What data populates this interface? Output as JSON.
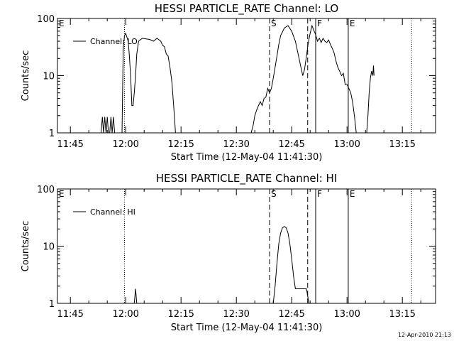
{
  "footer": {
    "timestamp": "12-Apr-2010 21:13"
  },
  "chart_data": [
    {
      "type": "line",
      "title": "HESSI PARTICLE_RATE Channel: LO",
      "xlabel": "Start Time (12-May-04 11:41:30)",
      "ylabel": "Counts/sec",
      "yscale": "log",
      "xlim": [
        "11:41:30",
        "13:24:00"
      ],
      "ylim": [
        1,
        100
      ],
      "x_ticks": [
        "11:45",
        "12:00",
        "12:15",
        "12:30",
        "12:45",
        "13:00",
        "13:15"
      ],
      "y_ticks": [
        "1",
        "10",
        "100"
      ],
      "legend": {
        "placement": "top-left",
        "entries": [
          "Channel: LO"
        ]
      },
      "series": [
        {
          "name": "Channel: LO",
          "segments": [
            [
              [
                "11:53:20",
                1
              ],
              [
                "11:53:40",
                1.9
              ],
              [
                "11:54:00",
                1
              ],
              [
                "11:54:20",
                1.9
              ],
              [
                "11:54:40",
                1
              ],
              [
                "11:55:00",
                1.9
              ],
              [
                "11:55:20",
                1
              ],
              [
                "11:55:40",
                1
              ],
              [
                "11:56:00",
                1.9
              ],
              [
                "11:56:20",
                1
              ],
              [
                "11:56:40",
                1.9
              ],
              [
                "11:57:00",
                1
              ]
            ],
            [
              [
                "11:59:00",
                1
              ],
              [
                "11:59:20",
                30
              ],
              [
                "11:59:40",
                50
              ],
              [
                "12:00:00",
                55
              ],
              [
                "12:00:20",
                47
              ],
              [
                "12:00:40",
                40
              ],
              [
                "12:01:00",
                22
              ],
              [
                "12:01:20",
                10
              ],
              [
                "12:01:40",
                3
              ],
              [
                "12:02:00",
                3
              ],
              [
                "12:02:20",
                5
              ],
              [
                "12:02:40",
                10
              ],
              [
                "12:03:00",
                24
              ],
              [
                "12:03:30",
                40
              ],
              [
                "12:04:30",
                45
              ],
              [
                "12:05:30",
                44
              ],
              [
                "12:06:30",
                43
              ],
              [
                "12:07:30",
                40
              ],
              [
                "12:08:30",
                45
              ],
              [
                "12:09:30",
                40
              ],
              [
                "12:10:00",
                34
              ],
              [
                "12:10:30",
                32
              ],
              [
                "12:11:00",
                24
              ],
              [
                "12:11:30",
                22
              ],
              [
                "12:12:00",
                14
              ],
              [
                "12:12:30",
                8
              ],
              [
                "12:13:00",
                3
              ],
              [
                "12:13:30",
                1
              ]
            ],
            [
              [
                "12:34:00",
                1
              ],
              [
                "12:34:30",
                1.3
              ],
              [
                "12:35:00",
                2
              ],
              [
                "12:35:30",
                2.5
              ],
              [
                "12:36:00",
                3
              ],
              [
                "12:36:30",
                3.5
              ],
              [
                "12:37:00",
                3
              ],
              [
                "12:37:30",
                4
              ],
              [
                "12:38:00",
                4.2
              ],
              [
                "12:38:30",
                6
              ],
              [
                "12:39:00",
                5
              ],
              [
                "12:39:30",
                6
              ],
              [
                "12:40:00",
                9
              ],
              [
                "12:40:30",
                14
              ],
              [
                "12:41:00",
                22
              ],
              [
                "12:41:30",
                35
              ],
              [
                "12:42:00",
                50
              ],
              [
                "12:43:00",
                68
              ],
              [
                "12:44:00",
                75
              ],
              [
                "12:45:00",
                60
              ],
              [
                "12:46:00",
                40
              ],
              [
                "12:47:00",
                20
              ],
              [
                "12:47:30",
                14
              ],
              [
                "12:48:00",
                10
              ],
              [
                "12:48:30",
                13
              ],
              [
                "12:49:00",
                22
              ],
              [
                "12:49:30",
                38
              ],
              [
                "12:50:00",
                55
              ],
              [
                "12:50:30",
                75
              ],
              [
                "12:51:00",
                62
              ],
              [
                "12:51:30",
                52
              ],
              [
                "12:52:00",
                40
              ],
              [
                "12:52:30",
                45
              ],
              [
                "12:53:00",
                38
              ],
              [
                "12:53:30",
                45
              ],
              [
                "12:54:00",
                40
              ],
              [
                "12:54:30",
                38
              ],
              [
                "12:55:00",
                42
              ],
              [
                "12:55:30",
                35
              ],
              [
                "12:56:00",
                30
              ],
              [
                "12:56:30",
                25
              ],
              [
                "12:57:00",
                18
              ],
              [
                "12:57:30",
                14
              ],
              [
                "12:58:00",
                12
              ],
              [
                "12:58:30",
                10
              ],
              [
                "12:59:00",
                11
              ],
              [
                "12:59:30",
                7
              ],
              [
                "13:00:00",
                7
              ],
              [
                "13:00:30",
                6
              ],
              [
                "13:01:00",
                5
              ],
              [
                "13:01:30",
                3.5
              ],
              [
                "13:02:00",
                2
              ],
              [
                "13:02:30",
                1
              ]
            ],
            [
              [
                "13:05:20",
                1
              ],
              [
                "13:05:40",
                2
              ],
              [
                "13:06:00",
                5
              ],
              [
                "13:06:20",
                9
              ],
              [
                "13:06:40",
                12
              ],
              [
                "13:07:00",
                10
              ],
              [
                "13:07:10",
                15
              ],
              [
                "13:07:20",
                10
              ]
            ]
          ]
        }
      ],
      "markers": [
        {
          "label": "E",
          "time": "11:41:30",
          "style": "solid"
        },
        {
          "label": "",
          "time": "11:59:40",
          "style": "dotted"
        },
        {
          "label": "S",
          "time": "12:39:00",
          "style": "dashed"
        },
        {
          "label": "",
          "time": "12:49:20",
          "style": "dashed"
        },
        {
          "label": "F",
          "time": "12:51:30",
          "style": "solid"
        },
        {
          "label": "E",
          "time": "13:00:20",
          "style": "solid"
        },
        {
          "label": "",
          "time": "13:17:30",
          "style": "dotted"
        }
      ]
    },
    {
      "type": "line",
      "title": "HESSI PARTICLE_RATE Channel: HI",
      "xlabel": "Start Time (12-May-04 11:41:30)",
      "ylabel": "Counts/sec",
      "yscale": "log",
      "xlim": [
        "11:41:30",
        "13:24:00"
      ],
      "ylim": [
        1,
        100
      ],
      "x_ticks": [
        "11:45",
        "12:00",
        "12:15",
        "12:30",
        "12:45",
        "13:00",
        "13:15"
      ],
      "y_ticks": [
        "1",
        "10",
        "100"
      ],
      "legend": {
        "placement": "top-left",
        "entries": [
          "Channel: HI"
        ]
      },
      "series": [
        {
          "name": "Channel: HI",
          "segments": [
            [
              [
                "12:02:20",
                1
              ],
              [
                "12:02:40",
                1.8
              ],
              [
                "12:03:00",
                1
              ]
            ],
            [
              [
                "12:40:00",
                1
              ],
              [
                "12:40:30",
                2
              ],
              [
                "12:41:00",
                5
              ],
              [
                "12:41:30",
                11
              ],
              [
                "12:42:00",
                17
              ],
              [
                "12:42:30",
                21
              ],
              [
                "12:43:00",
                22
              ],
              [
                "12:43:30",
                21
              ],
              [
                "12:44:00",
                17
              ],
              [
                "12:44:30",
                11
              ],
              [
                "12:45:00",
                6
              ],
              [
                "12:45:30",
                3
              ],
              [
                "12:46:00",
                1.8
              ],
              [
                "12:47:00",
                1.8
              ],
              [
                "12:48:00",
                1.8
              ],
              [
                "12:49:00",
                1.8
              ],
              [
                "12:49:40",
                1
              ]
            ]
          ]
        }
      ],
      "markers": [
        {
          "label": "E",
          "time": "11:41:30",
          "style": "solid"
        },
        {
          "label": "",
          "time": "11:59:40",
          "style": "dotted"
        },
        {
          "label": "S",
          "time": "12:39:00",
          "style": "dashed"
        },
        {
          "label": "",
          "time": "12:49:20",
          "style": "dashed"
        },
        {
          "label": "F",
          "time": "12:51:30",
          "style": "solid"
        },
        {
          "label": "E",
          "time": "13:00:20",
          "style": "solid"
        },
        {
          "label": "",
          "time": "13:17:30",
          "style": "dotted"
        }
      ]
    }
  ]
}
